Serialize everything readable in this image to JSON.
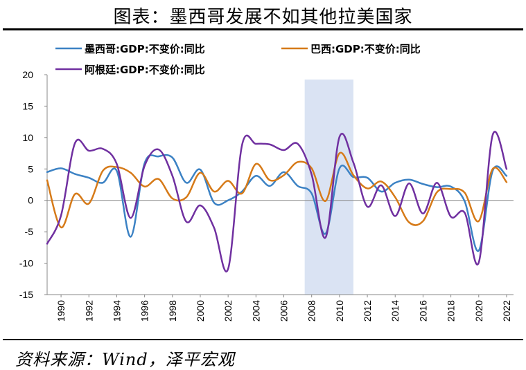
{
  "title": "图表：墨西哥发展不如其他拉美国家",
  "source": "资料来源：Wind，泽平宏观",
  "chart_data": {
    "type": "line",
    "title": "图表：墨西哥发展不如其他拉美国家",
    "xlabel": "",
    "ylabel": "",
    "ylim": [
      -15,
      20
    ],
    "yticks": [
      -15,
      -10,
      -5,
      0,
      5,
      10,
      15,
      20
    ],
    "xlim": [
      1989,
      2022.5
    ],
    "xticks": [
      1990,
      1992,
      1994,
      1996,
      1998,
      2000,
      2002,
      2004,
      2006,
      2008,
      2010,
      2012,
      2014,
      2016,
      2018,
      2020,
      2022
    ],
    "shaded_region": {
      "x": [
        2007.5,
        2011
      ],
      "color": "#dae3f3"
    },
    "legend_position": "top",
    "series": [
      {
        "name": "墨西哥:GDP:不变价:同比",
        "color": "#3c82c4",
        "x": [
          1989,
          1990,
          1991,
          1992,
          1993,
          1994,
          1995,
          1996,
          1997,
          1998,
          1999,
          2000,
          2001,
          2002,
          2003,
          2004,
          2005,
          2006,
          2007,
          2008,
          2009,
          2010,
          2011,
          2012,
          2013,
          2014,
          2015,
          2016,
          2017,
          2018,
          2019,
          2020,
          2021,
          2022
        ],
        "values": [
          4.5,
          5.1,
          4.2,
          3.6,
          2.8,
          4.7,
          -5.8,
          5.9,
          7.0,
          6.8,
          2.8,
          4.9,
          -0.4,
          0.0,
          1.4,
          3.9,
          2.3,
          4.5,
          2.3,
          1.1,
          -5.3,
          5.1,
          3.7,
          3.6,
          1.4,
          2.8,
          3.3,
          2.6,
          2.1,
          2.2,
          -0.2,
          -8.0,
          4.7,
          3.9
        ]
      },
      {
        "name": "巴西:GDP:不变价:同比",
        "color": "#d67a18",
        "x": [
          1989,
          1990,
          1991,
          1992,
          1993,
          1994,
          1995,
          1996,
          1997,
          1998,
          1999,
          2000,
          2001,
          2002,
          2003,
          2004,
          2005,
          2006,
          2007,
          2008,
          2009,
          2010,
          2011,
          2012,
          2013,
          2014,
          2015,
          2016,
          2017,
          2018,
          2019,
          2020,
          2021,
          2022
        ],
        "values": [
          3.2,
          -4.3,
          1.0,
          -0.5,
          4.7,
          5.3,
          4.4,
          2.2,
          3.4,
          0.3,
          0.5,
          4.4,
          1.4,
          3.1,
          1.1,
          5.8,
          3.2,
          4.0,
          6.1,
          5.1,
          -0.1,
          7.5,
          4.0,
          1.9,
          3.0,
          0.5,
          -3.5,
          -3.3,
          1.3,
          1.8,
          1.2,
          -3.3,
          5.0,
          2.9
        ]
      },
      {
        "name": "阿根廷:GDP:不变价:同比",
        "color": "#7030a0",
        "x": [
          1989,
          1990,
          1991,
          1992,
          1993,
          1994,
          1995,
          1996,
          1997,
          1998,
          1999,
          2000,
          2001,
          2002,
          2003,
          2004,
          2005,
          2006,
          2007,
          2008,
          2009,
          2010,
          2011,
          2012,
          2013,
          2014,
          2015,
          2016,
          2017,
          2018,
          2019,
          2020,
          2021,
          2022
        ],
        "values": [
          -6.9,
          -2.4,
          9.1,
          7.9,
          8.2,
          5.8,
          -2.8,
          5.5,
          8.1,
          3.9,
          -3.4,
          -0.8,
          -4.4,
          -10.9,
          8.8,
          9.0,
          8.9,
          8.0,
          9.0,
          4.1,
          -5.9,
          10.1,
          6.0,
          -1.0,
          2.4,
          -2.5,
          2.7,
          -2.1,
          2.8,
          -2.6,
          -2.0,
          -9.9,
          10.4,
          5.0
        ]
      }
    ]
  }
}
